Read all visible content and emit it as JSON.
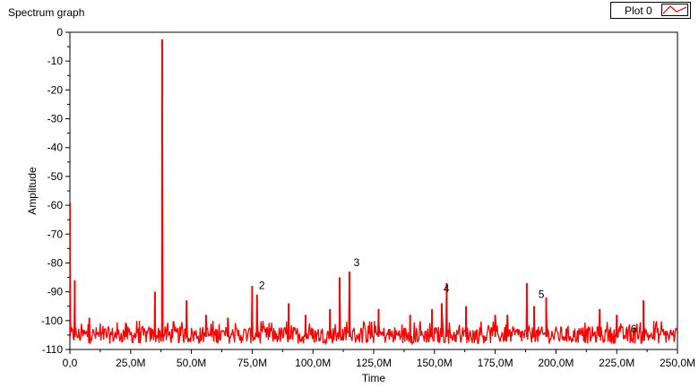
{
  "window": {
    "title": "Spectrum graph"
  },
  "legend": {
    "label": "Plot 0",
    "color": "#ff0000"
  },
  "chart_data": {
    "type": "line",
    "title": "Spectrum graph",
    "xlabel": "Time",
    "ylabel": "Amplitude",
    "xlim": [
      0,
      250000000
    ],
    "ylim": [
      -110,
      0
    ],
    "x_tick_labels": [
      "0,0",
      "25,0M",
      "50,0M",
      "75,0M",
      "100,0M",
      "125,0M",
      "150,0M",
      "175,0M",
      "200,0M",
      "225,0M",
      "250,0M"
    ],
    "x_ticks": [
      0,
      25000000,
      50000000,
      75000000,
      100000000,
      125000000,
      150000000,
      175000000,
      200000000,
      225000000,
      250000000
    ],
    "y_ticks": [
      0,
      -10,
      -20,
      -30,
      -40,
      -50,
      -60,
      -70,
      -80,
      -90,
      -100,
      -110
    ],
    "grid": false,
    "legend_placement": "top-right",
    "series": [
      {
        "name": "Plot 0",
        "color": "#ff0000",
        "noise_floor": [
          -108,
          -102
        ],
        "peaks": [
          {
            "x": 0,
            "y": -59
          },
          {
            "x": 2000000,
            "y": -86
          },
          {
            "x": 8000000,
            "y": -99
          },
          {
            "x": 23000000,
            "y": -101
          },
          {
            "x": 35000000,
            "y": -90
          },
          {
            "x": 38000000,
            "y": -2.5
          },
          {
            "x": 48000000,
            "y": -93
          },
          {
            "x": 56000000,
            "y": -98
          },
          {
            "x": 65000000,
            "y": -99
          },
          {
            "x": 75000000,
            "y": -88
          },
          {
            "x": 77000000,
            "y": -91
          },
          {
            "x": 90000000,
            "y": -94
          },
          {
            "x": 97000000,
            "y": -98
          },
          {
            "x": 107000000,
            "y": -96
          },
          {
            "x": 111000000,
            "y": -85
          },
          {
            "x": 115000000,
            "y": -83
          },
          {
            "x": 127000000,
            "y": -96
          },
          {
            "x": 140000000,
            "y": -98
          },
          {
            "x": 149000000,
            "y": -96
          },
          {
            "x": 153000000,
            "y": -94
          },
          {
            "x": 155000000,
            "y": -87
          },
          {
            "x": 163000000,
            "y": -95
          },
          {
            "x": 175000000,
            "y": -98
          },
          {
            "x": 180000000,
            "y": -98
          },
          {
            "x": 188000000,
            "y": -87
          },
          {
            "x": 191000000,
            "y": -95
          },
          {
            "x": 196000000,
            "y": -92
          },
          {
            "x": 218000000,
            "y": -96
          },
          {
            "x": 225000000,
            "y": -98
          },
          {
            "x": 236000000,
            "y": -93
          }
        ]
      }
    ],
    "annotations": [
      {
        "text": "2",
        "x": 77000000,
        "y": -90
      },
      {
        "text": "3",
        "x": 116000000,
        "y": -82
      },
      {
        "text": "4",
        "x": 153000000,
        "y": -91
      },
      {
        "text": "5",
        "x": 192000000,
        "y": -93
      },
      {
        "text": "6",
        "x": 230000000,
        "y": -105
      }
    ]
  }
}
